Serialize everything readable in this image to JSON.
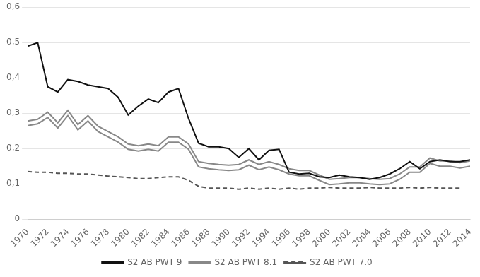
{
  "chart_data": {
    "type": "line",
    "x": [
      1970,
      1971,
      1972,
      1973,
      1974,
      1975,
      1976,
      1977,
      1978,
      1979,
      1980,
      1981,
      1982,
      1983,
      1984,
      1985,
      1986,
      1987,
      1988,
      1989,
      1990,
      1991,
      1992,
      1993,
      1994,
      1995,
      1996,
      1997,
      1998,
      1999,
      2000,
      2001,
      2002,
      2003,
      2004,
      2005,
      2006,
      2007,
      2008,
      2009,
      2010,
      2011,
      2012,
      2013,
      2014
    ],
    "series": [
      {
        "name": "S2 AB PWT 9",
        "color": "#111111",
        "line_style": "solid",
        "values": [
          0.49,
          0.5,
          0.375,
          0.36,
          0.395,
          0.39,
          0.38,
          0.375,
          0.37,
          0.345,
          0.295,
          0.32,
          0.34,
          0.33,
          0.36,
          0.37,
          0.285,
          0.215,
          0.205,
          0.205,
          0.2,
          0.175,
          0.2,
          0.168,
          0.195,
          0.198,
          0.133,
          0.128,
          0.13,
          0.12,
          0.118,
          0.125,
          0.12,
          0.118,
          0.113,
          0.118,
          0.128,
          0.143,
          0.163,
          0.143,
          0.163,
          0.168,
          0.163,
          0.163,
          0.168
        ]
      },
      {
        "name": "S2 AB PWT 8.1",
        "color": "#888888",
        "line_style": "solid",
        "values": [
          0.278,
          0.283,
          0.303,
          0.273,
          0.308,
          0.268,
          0.293,
          0.263,
          0.248,
          0.233,
          0.213,
          0.208,
          0.213,
          0.208,
          0.233,
          0.233,
          0.213,
          0.163,
          0.158,
          0.155,
          0.153,
          0.155,
          0.168,
          0.155,
          0.163,
          0.155,
          0.143,
          0.138,
          0.138,
          0.125,
          0.113,
          0.115,
          0.118,
          0.118,
          0.115,
          0.113,
          0.115,
          0.128,
          0.148,
          0.148,
          0.173,
          0.165,
          0.165,
          0.16,
          0.165
        ]
      },
      {
        "name": "S2 AB PWT 8.1",
        "color": "#888888",
        "line_style": "solid",
        "values": [
          0.265,
          0.27,
          0.288,
          0.258,
          0.293,
          0.253,
          0.278,
          0.248,
          0.233,
          0.218,
          0.198,
          0.193,
          0.198,
          0.193,
          0.218,
          0.218,
          0.198,
          0.148,
          0.143,
          0.14,
          0.138,
          0.14,
          0.153,
          0.14,
          0.148,
          0.14,
          0.128,
          0.123,
          0.123,
          0.11,
          0.098,
          0.1,
          0.103,
          0.103,
          0.1,
          0.098,
          0.1,
          0.113,
          0.133,
          0.133,
          0.158,
          0.15,
          0.15,
          0.145,
          0.15
        ]
      },
      {
        "name": "S2 AB PWT 7.0",
        "color": "#555555",
        "line_style": "dashed",
        "values": [
          0.135,
          0.133,
          0.133,
          0.13,
          0.13,
          0.128,
          0.128,
          0.125,
          0.122,
          0.12,
          0.118,
          0.115,
          0.115,
          0.118,
          0.12,
          0.12,
          0.11,
          0.093,
          0.088,
          0.088,
          0.088,
          0.085,
          0.088,
          0.085,
          0.088,
          0.085,
          0.088,
          0.085,
          0.088,
          0.088,
          0.09,
          0.088,
          0.088,
          0.088,
          0.09,
          0.088,
          0.088,
          0.088,
          0.09,
          0.088,
          0.09,
          0.088,
          0.088,
          0.088,
          null
        ]
      }
    ],
    "xlim": [
      1970,
      2014
    ],
    "xticks": [
      1970,
      1972,
      1974,
      1976,
      1978,
      1980,
      1982,
      1984,
      1986,
      1988,
      1990,
      1992,
      1994,
      1996,
      1998,
      2000,
      2002,
      2004,
      2006,
      2008,
      2010,
      2012,
      2014
    ],
    "ylim": [
      0,
      0.6
    ],
    "yticks": [
      0,
      {
        "value": 0.1,
        "label": "0,1"
      },
      {
        "value": 0.2,
        "label": "0,2"
      },
      {
        "value": 0.3,
        "label": "0,3"
      },
      {
        "value": 0.4,
        "label": "0,4"
      },
      {
        "value": 0.5,
        "label": "0,5"
      },
      {
        "value": 0.6,
        "label": "0,6"
      }
    ],
    "grid": "y",
    "legend": "bottom"
  }
}
